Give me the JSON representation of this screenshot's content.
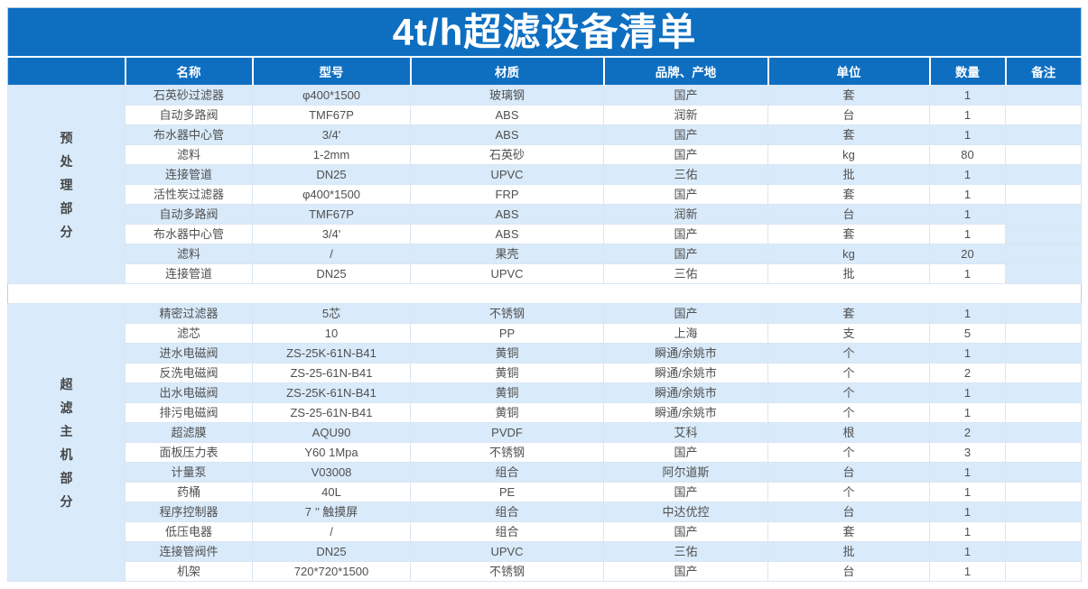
{
  "title": "4t/h超滤设备清单",
  "colors": {
    "header_blue": "#0E6FC1",
    "row_blue": "#D9EAFA",
    "text_gray": "#505050"
  },
  "table": {
    "columns": [
      "名称",
      "型号",
      "材质",
      "品牌、产地",
      "单位",
      "数量",
      "备注"
    ],
    "sections": [
      {
        "group_label": "预处理部分",
        "rows": [
          {
            "name": "石英砂过滤器",
            "model": "φ400*1500",
            "material": "玻璃钢",
            "brand": "国产",
            "unit": "套",
            "qty": "1",
            "remark": ""
          },
          {
            "name": "自动多路阀",
            "model": "TMF67P",
            "material": "ABS",
            "brand": "润新",
            "unit": "台",
            "qty": "1",
            "remark": ""
          },
          {
            "name": "布水器中心管",
            "model": "3/4'",
            "material": "ABS",
            "brand": "国产",
            "unit": "套",
            "qty": "1",
            "remark": ""
          },
          {
            "name": "滤料",
            "model": "1-2mm",
            "material": "石英砂",
            "brand": "国产",
            "unit": "kg",
            "qty": "80",
            "remark": ""
          },
          {
            "name": "连接管道",
            "model": "DN25",
            "material": "UPVC",
            "brand": "三佑",
            "unit": "批",
            "qty": "1",
            "remark": ""
          },
          {
            "name": "活性炭过滤器",
            "model": "φ400*1500",
            "material": "FRP",
            "brand": "国产",
            "unit": "套",
            "qty": "1",
            "remark": ""
          },
          {
            "name": "自动多路阀",
            "model": "TMF67P",
            "material": "ABS",
            "brand": "润新",
            "unit": "台",
            "qty": "1",
            "remark": ""
          },
          {
            "name": "布水器中心管",
            "model": "3/4'",
            "material": "ABS",
            "brand": "国产",
            "unit": "套",
            "qty": "1",
            "remark": "",
            "remark_blue": true
          },
          {
            "name": "滤料",
            "model": "/",
            "material": "果壳",
            "brand": "国产",
            "unit": "kg",
            "qty": "20",
            "remark": ""
          },
          {
            "name": "连接管道",
            "model": "DN25",
            "material": "UPVC",
            "brand": "三佑",
            "unit": "批",
            "qty": "1",
            "remark": "",
            "remark_blue": true
          }
        ]
      },
      {
        "group_label": "超滤主机部分",
        "rows": [
          {
            "name": "精密过滤器",
            "model": "5芯",
            "material": "不锈钢",
            "brand": "国产",
            "unit": "套",
            "qty": "1",
            "remark": ""
          },
          {
            "name": "滤芯",
            "model": "10",
            "material": "PP",
            "brand": "上海",
            "unit": "支",
            "qty": "5",
            "remark": ""
          },
          {
            "name": "进水电磁阀",
            "model": "ZS-25K-61N-B41",
            "material": "黄铜",
            "brand": "瞬通/余姚市",
            "unit": "个",
            "qty": "1",
            "remark": ""
          },
          {
            "name": "反洗电磁阀",
            "model": "ZS-25-61N-B41",
            "material": "黄铜",
            "brand": "瞬通/余姚市",
            "unit": "个",
            "qty": "2",
            "remark": ""
          },
          {
            "name": "出水电磁阀",
            "model": "ZS-25K-61N-B41",
            "material": "黄铜",
            "brand": "瞬通/余姚市",
            "unit": "个",
            "qty": "1",
            "remark": ""
          },
          {
            "name": "排污电磁阀",
            "model": "ZS-25-61N-B41",
            "material": "黄铜",
            "brand": "瞬通/余姚市",
            "unit": "个",
            "qty": "1",
            "remark": ""
          },
          {
            "name": "超滤膜",
            "model": "AQU90",
            "material": "PVDF",
            "brand": "艾科",
            "unit": "根",
            "qty": "2",
            "remark": ""
          },
          {
            "name": "面板压力表",
            "model": "Y60 1Mpa",
            "material": "不锈钢",
            "brand": "国产",
            "unit": "个",
            "qty": "3",
            "remark": ""
          },
          {
            "name": "计量泵",
            "model": "V03008",
            "material": "组合",
            "brand": "阿尔道斯",
            "unit": "台",
            "qty": "1",
            "remark": ""
          },
          {
            "name": "药桶",
            "model": "40L",
            "material": "PE",
            "brand": "国产",
            "unit": "个",
            "qty": "1",
            "remark": ""
          },
          {
            "name": "程序控制器",
            "model": "7 ’’ 触摸屏",
            "material": "组合",
            "brand": "中达优控",
            "unit": "台",
            "qty": "1",
            "remark": ""
          },
          {
            "name": "低压电器",
            "model": "/",
            "material": "组合",
            "brand": "国产",
            "unit": "套",
            "qty": "1",
            "remark": ""
          },
          {
            "name": "连接管阀件",
            "model": "DN25",
            "material": "UPVC",
            "brand": "三佑",
            "unit": "批",
            "qty": "1",
            "remark": ""
          },
          {
            "name": "机架",
            "model": "720*720*1500",
            "material": "不锈钢",
            "brand": "国产",
            "unit": "台",
            "qty": "1",
            "remark": ""
          }
        ]
      }
    ]
  }
}
